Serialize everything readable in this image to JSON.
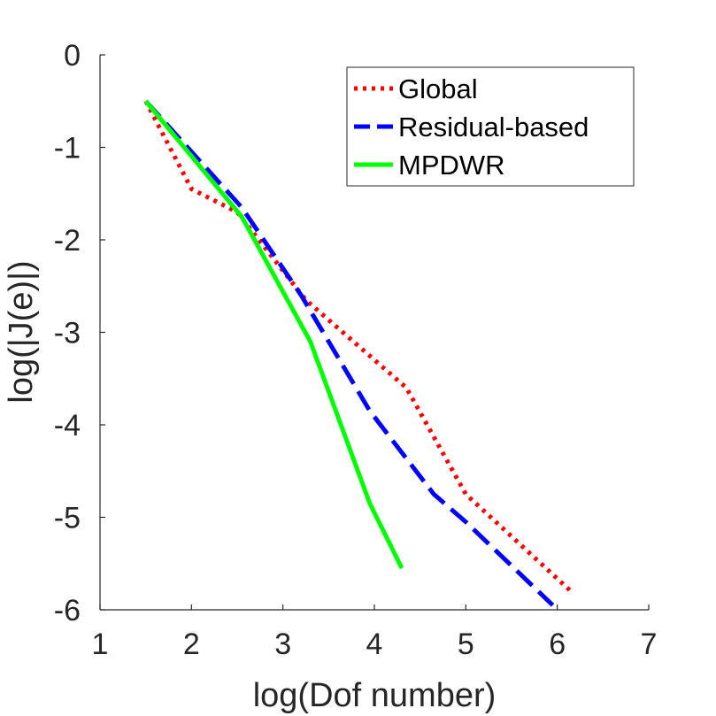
{
  "chart_data": {
    "type": "line",
    "xlabel": "log(Dof number)",
    "ylabel": "log(|J(e)|)",
    "xlim": [
      1,
      7
    ],
    "ylim": [
      -6,
      0
    ],
    "xticks": [
      1,
      2,
      3,
      4,
      5,
      6,
      7
    ],
    "yticks": [
      0,
      -1,
      -2,
      -3,
      -4,
      -5,
      -6
    ],
    "grid": false,
    "legend_position": "top-right",
    "series": [
      {
        "name": "Global",
        "color": "#ff0000",
        "style": "dotted",
        "x": [
          1.5,
          2.0,
          2.5,
          3.25,
          4.35,
          5.0,
          6.15
        ],
        "y": [
          -0.5,
          -1.45,
          -1.7,
          -2.65,
          -3.6,
          -4.75,
          -5.8
        ]
      },
      {
        "name": "Residual-based",
        "color": "#0000ff",
        "style": "dashed",
        "x": [
          1.5,
          2.55,
          3.2,
          3.95,
          4.65,
          5.0,
          5.95
        ],
        "y": [
          -0.5,
          -1.65,
          -2.6,
          -3.85,
          -4.75,
          -5.05,
          -5.95
        ]
      },
      {
        "name": "MPDWR",
        "color": "#00ff00",
        "style": "solid",
        "x": [
          1.5,
          2.55,
          3.3,
          3.95,
          4.3
        ],
        "y": [
          -0.5,
          -1.75,
          -3.1,
          -4.85,
          -5.55
        ]
      }
    ]
  }
}
